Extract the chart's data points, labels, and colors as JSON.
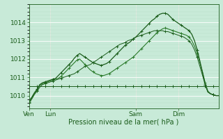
{
  "bg_color": "#c8ead8",
  "grid_color_major": "#ffffff",
  "grid_color_minor": "#b8ddc8",
  "line_color_dark": "#1a5c1a",
  "line_color_mid": "#2a7a2a",
  "xlabel": "Pression niveau de la mer( hPa )",
  "ylim": [
    1009.3,
    1015.0
  ],
  "yticks": [
    1010,
    1011,
    1012,
    1013,
    1014
  ],
  "xtick_labels": [
    "Ven",
    "Lun",
    "Sam",
    "Dim"
  ],
  "xtick_positions": [
    0,
    8,
    40,
    56
  ],
  "total_points": 72,
  "series_steady": [
    1010.5,
    1010.5,
    1010.5,
    1010.5,
    1010.5,
    1010.5,
    1010.5,
    1010.5,
    1010.5,
    1010.5,
    1010.5,
    1010.5,
    1010.5,
    1010.5,
    1010.5,
    1010.5,
    1010.5,
    1010.5,
    1010.5,
    1010.5,
    1010.5,
    1010.5,
    1010.5,
    1010.5,
    1010.5,
    1010.5,
    1010.5,
    1010.5,
    1010.5,
    1010.5,
    1010.5,
    1010.5,
    1010.5,
    1010.5,
    1010.5,
    1010.5,
    1010.5,
    1010.5,
    1010.5,
    1010.5,
    1010.5,
    1010.5,
    1010.5,
    1010.5,
    1010.5,
    1010.5,
    1010.5,
    1010.5,
    1010.5,
    1010.5,
    1010.5,
    1010.5,
    1010.5,
    1010.5,
    1010.5,
    1010.5,
    1010.5,
    1010.5,
    1010.5,
    1010.5,
    1010.5,
    1010.5,
    1010.5,
    1010.5,
    1010.5,
    1010.5,
    1010.5,
    1010.5,
    1010.5,
    1010.5,
    1010.5,
    1010.5
  ],
  "series_main": [
    1009.6,
    1009.8,
    1010.05,
    1010.25,
    1010.45,
    1010.6,
    1010.65,
    1010.7,
    1010.75,
    1010.8,
    1010.85,
    1010.9,
    1010.95,
    1011.0,
    1011.05,
    1011.1,
    1011.15,
    1011.2,
    1011.3,
    1011.4,
    1011.5,
    1011.6,
    1011.65,
    1011.7,
    1011.8,
    1011.9,
    1012.0,
    1012.1,
    1012.2,
    1012.3,
    1012.4,
    1012.5,
    1012.6,
    1012.7,
    1012.8,
    1012.85,
    1012.9,
    1013.0,
    1013.05,
    1013.1,
    1013.2,
    1013.25,
    1013.3,
    1013.35,
    1013.4,
    1013.45,
    1013.5,
    1013.55,
    1013.55,
    1013.55,
    1013.55,
    1013.5,
    1013.5,
    1013.45,
    1013.4,
    1013.35,
    1013.3,
    1013.25,
    1013.2,
    1013.1,
    1013.0,
    1012.8,
    1012.5,
    1012.1,
    1011.6,
    1011.1,
    1010.6,
    1010.2,
    1010.1,
    1010.05,
    1010.0,
    1010.0
  ],
  "series_wavy": [
    1009.65,
    1009.85,
    1010.1,
    1010.3,
    1010.55,
    1010.65,
    1010.7,
    1010.75,
    1010.8,
    1010.85,
    1010.9,
    1010.95,
    1011.05,
    1011.2,
    1011.35,
    1011.5,
    1011.65,
    1011.8,
    1011.95,
    1012.0,
    1011.85,
    1011.7,
    1011.55,
    1011.4,
    1011.3,
    1011.2,
    1011.15,
    1011.1,
    1011.1,
    1011.15,
    1011.2,
    1011.3,
    1011.4,
    1011.5,
    1011.6,
    1011.7,
    1011.8,
    1011.9,
    1012.0,
    1012.1,
    1012.25,
    1012.4,
    1012.55,
    1012.7,
    1012.85,
    1013.0,
    1013.15,
    1013.3,
    1013.45,
    1013.55,
    1013.65,
    1013.7,
    1013.65,
    1013.6,
    1013.55,
    1013.5,
    1013.45,
    1013.4,
    1013.35,
    1013.3,
    1013.2,
    1013.0,
    1012.7,
    1012.3,
    1011.8,
    1011.3,
    1010.7,
    1010.25,
    1010.1,
    1010.05,
    1010.0,
    1010.0
  ],
  "series_top": [
    1009.7,
    1009.9,
    1010.15,
    1010.35,
    1010.6,
    1010.7,
    1010.75,
    1010.8,
    1010.85,
    1010.9,
    1010.95,
    1011.1,
    1011.25,
    1011.4,
    1011.55,
    1011.7,
    1011.85,
    1012.05,
    1012.2,
    1012.3,
    1012.2,
    1012.1,
    1012.0,
    1011.9,
    1011.8,
    1011.75,
    1011.7,
    1011.65,
    1011.7,
    1011.75,
    1011.85,
    1012.0,
    1012.15,
    1012.3,
    1012.45,
    1012.6,
    1012.75,
    1012.85,
    1012.95,
    1013.1,
    1013.2,
    1013.35,
    1013.5,
    1013.65,
    1013.8,
    1013.95,
    1014.1,
    1014.2,
    1014.35,
    1014.45,
    1014.5,
    1014.5,
    1014.45,
    1014.3,
    1014.15,
    1014.05,
    1013.95,
    1013.85,
    1013.75,
    1013.65,
    1013.55,
    1013.35,
    1013.0,
    1012.5,
    1011.9,
    1011.25,
    1010.6,
    1010.2,
    1010.1,
    1010.05,
    1010.0,
    1010.0
  ]
}
